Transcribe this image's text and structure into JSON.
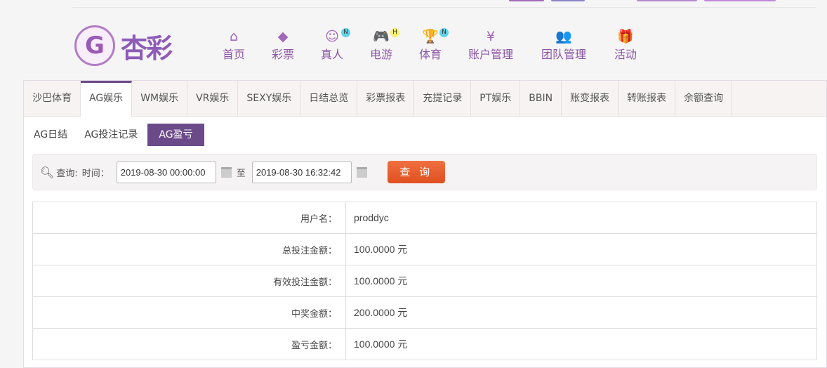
{
  "brand": {
    "name": "杏彩",
    "mark": "G"
  },
  "nav": [
    {
      "label": "首页",
      "icon": "home-icon",
      "glyph": "⌂"
    },
    {
      "label": "彩票",
      "icon": "ticket-icon",
      "glyph": "◆"
    },
    {
      "label": "真人",
      "icon": "live-dealer-icon",
      "glyph": "☺",
      "badge": "N"
    },
    {
      "label": "电游",
      "icon": "gamepad-icon",
      "glyph": "🎮",
      "badge": "H"
    },
    {
      "label": "体育",
      "icon": "trophy-icon",
      "glyph": "🏆",
      "badge": "N"
    },
    {
      "label": "账户管理",
      "icon": "yen-coin-icon",
      "glyph": "¥"
    },
    {
      "label": "团队管理",
      "icon": "team-icon",
      "glyph": "👥"
    },
    {
      "label": "活动",
      "icon": "gift-icon",
      "glyph": "🎁"
    }
  ],
  "tabs": [
    "沙巴体育",
    "AG娱乐",
    "WM娱乐",
    "VR娱乐",
    "SEXY娱乐",
    "日结总览",
    "彩票报表",
    "充提记录",
    "PT娱乐",
    "BBIN",
    "账变报表",
    "转账报表",
    "余额查询"
  ],
  "active_tab": "AG娱乐",
  "subtabs": [
    "AG日结",
    "AG投注记录",
    "AG盈亏"
  ],
  "active_subtab": "AG盈亏",
  "query": {
    "label": "查询:",
    "time_label": "时间：",
    "start": "2019-08-30 00:00:00",
    "to": "至",
    "end": "2019-08-30 16:32:42",
    "button": "查 询"
  },
  "rows": [
    {
      "label": "用户名：",
      "value": "proddyc"
    },
    {
      "label": "总投注金额：",
      "value": "100.0000 元"
    },
    {
      "label": "有效投注金额：",
      "value": "100.0000 元"
    },
    {
      "label": "中奖金额：",
      "value": "200.0000 元"
    },
    {
      "label": "盈亏金额：",
      "value": "100.0000 元"
    }
  ],
  "colors": {
    "accent": "#6b4a8a",
    "nav": "#8d55a8",
    "query_button": "#e8602c"
  }
}
